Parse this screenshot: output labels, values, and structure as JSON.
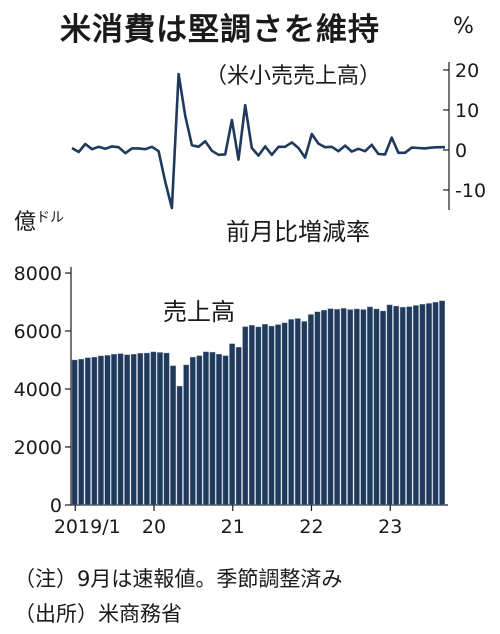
{
  "title": "米消費は堅調さを維持",
  "note": "（注）9月は速報値。季節調整済み",
  "source": "（出所）米商務省",
  "chart_data": [
    {
      "type": "line",
      "subtitle": "（米小売売上高）",
      "ylabel": "前月比増減率",
      "yunit": "%",
      "ylim": [
        -15,
        22
      ],
      "yticks": [
        20,
        10,
        0,
        -10
      ],
      "ytick_labels": [
        "20",
        "10",
        "0",
        "-10"
      ],
      "grid": false,
      "x": [
        "2019-01",
        "2019-02",
        "2019-03",
        "2019-04",
        "2019-05",
        "2019-06",
        "2019-07",
        "2019-08",
        "2019-09",
        "2019-10",
        "2019-11",
        "2019-12",
        "2020-01",
        "2020-02",
        "2020-03",
        "2020-04",
        "2020-05",
        "2020-06",
        "2020-07",
        "2020-08",
        "2020-09",
        "2020-10",
        "2020-11",
        "2020-12",
        "2021-01",
        "2021-02",
        "2021-03",
        "2021-04",
        "2021-05",
        "2021-06",
        "2021-07",
        "2021-08",
        "2021-09",
        "2021-10",
        "2021-11",
        "2021-12",
        "2022-01",
        "2022-02",
        "2022-03",
        "2022-04",
        "2022-05",
        "2022-06",
        "2022-07",
        "2022-08",
        "2022-09",
        "2022-10",
        "2022-11",
        "2022-12",
        "2023-01",
        "2023-02",
        "2023-03",
        "2023-04",
        "2023-05",
        "2023-06",
        "2023-07",
        "2023-08",
        "2023-09"
      ],
      "values": [
        0.5,
        -0.5,
        1.5,
        0.2,
        0.8,
        0.3,
        0.9,
        0.7,
        -0.8,
        0.4,
        0.4,
        0.2,
        0.8,
        -0.3,
        -8.0,
        -14.5,
        19.0,
        8.6,
        1.2,
        0.8,
        2.2,
        -0.2,
        -1.2,
        -1.1,
        7.5,
        -2.4,
        11.2,
        0.5,
        -1.4,
        0.9,
        -1.2,
        0.8,
        0.8,
        1.9,
        0.5,
        -1.9,
        4.0,
        1.6,
        0.7,
        0.8,
        -0.3,
        1.1,
        -0.4,
        0.3,
        -0.3,
        1.3,
        -1.0,
        -1.1,
        3.1,
        -0.7,
        -0.7,
        0.6,
        0.5,
        0.4,
        0.6,
        0.7,
        0.7
      ],
      "color": "#1f3a5c"
    },
    {
      "type": "bar",
      "series_label": "売上高",
      "yunit": "億ドル",
      "ylim": [
        0,
        8000
      ],
      "yticks": [
        0,
        2000,
        4000,
        6000,
        8000
      ],
      "ytick_labels": [
        "0",
        "2000",
        "4000",
        "6000",
        "8000"
      ],
      "xtick_labels": [
        "2019/1",
        "20",
        "21",
        "22",
        "23"
      ],
      "xtick_index": [
        0,
        12,
        24,
        36,
        48
      ],
      "grid": false,
      "values": [
        5000,
        5030,
        5080,
        5100,
        5140,
        5160,
        5200,
        5220,
        5180,
        5200,
        5230,
        5240,
        5280,
        5260,
        5240,
        4800,
        4100,
        4830,
        5100,
        5150,
        5280,
        5270,
        5200,
        5150,
        5560,
        5440,
        6150,
        6200,
        6140,
        6230,
        6170,
        6220,
        6280,
        6400,
        6430,
        6330,
        6570,
        6660,
        6720,
        6770,
        6750,
        6780,
        6740,
        6760,
        6740,
        6830,
        6760,
        6690,
        6900,
        6860,
        6820,
        6840,
        6880,
        6920,
        6950,
        6990,
        7040
      ],
      "color": "#1f3a5c"
    }
  ]
}
